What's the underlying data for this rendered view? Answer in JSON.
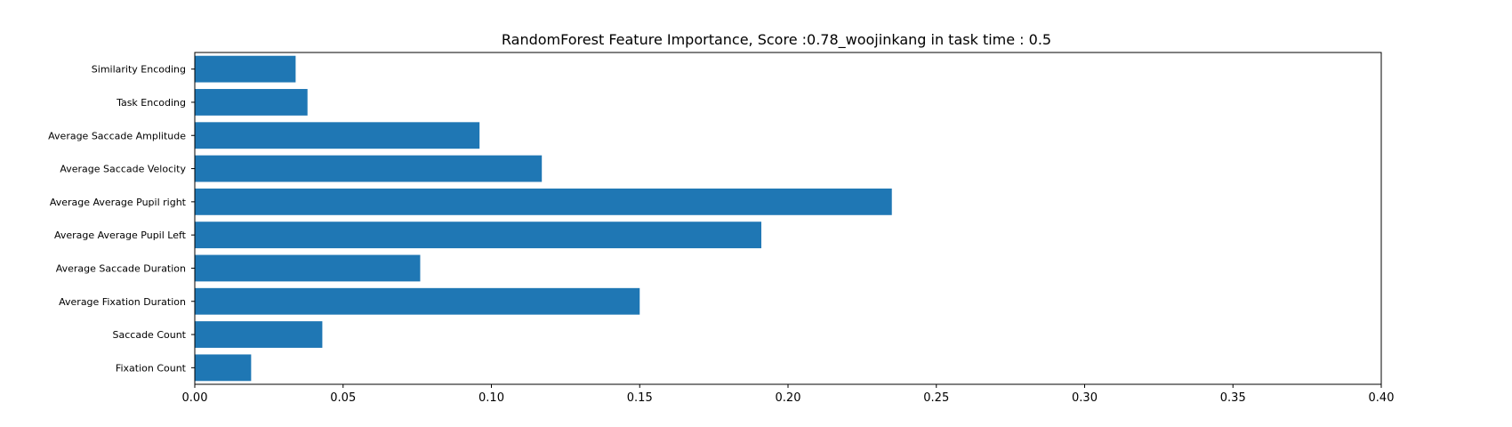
{
  "chart_data": {
    "type": "bar",
    "orientation": "horizontal",
    "title": "RandomForest Feature Importance, Score :0.78_woojinkang in task time : 0.5",
    "xlabel": "",
    "ylabel": "",
    "xlim": [
      0,
      0.4
    ],
    "xticks": [
      "0.00",
      "0.05",
      "0.10",
      "0.15",
      "0.20",
      "0.25",
      "0.30",
      "0.35",
      "0.40"
    ],
    "grid": false,
    "bar_color": "#1f77b4",
    "categories": [
      "Fixation Count",
      "Saccade Count",
      "Average Fixation Duration",
      "Average Saccade Duration",
      "Average Average Pupil Left",
      "Average Average Pupil right",
      "Average Saccade Velocity",
      "Average Saccade Amplitude",
      "Task Encoding",
      "Similarity Encoding"
    ],
    "values": [
      0.019,
      0.043,
      0.15,
      0.076,
      0.191,
      0.235,
      0.117,
      0.096,
      0.038,
      0.034
    ]
  }
}
